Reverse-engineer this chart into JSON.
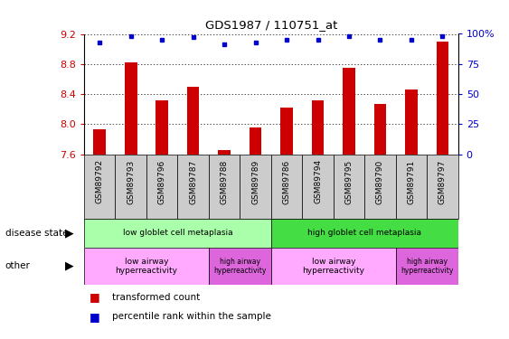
{
  "title": "GDS1987 / 110751_at",
  "samples": [
    "GSM89792",
    "GSM89793",
    "GSM89796",
    "GSM89787",
    "GSM89788",
    "GSM89789",
    "GSM89786",
    "GSM89794",
    "GSM89795",
    "GSM89790",
    "GSM89791",
    "GSM89797"
  ],
  "bar_values": [
    7.93,
    8.82,
    8.32,
    8.5,
    7.65,
    7.96,
    8.22,
    8.32,
    8.75,
    8.27,
    8.46,
    9.1
  ],
  "percentile_values": [
    93,
    98,
    95,
    97,
    91,
    93,
    95,
    95,
    98,
    95,
    95,
    98
  ],
  "bar_color": "#cc0000",
  "percentile_color": "#0000cc",
  "ylim_left": [
    7.6,
    9.2
  ],
  "yticks_left": [
    7.6,
    8.0,
    8.4,
    8.8,
    9.2
  ],
  "ylim_right": [
    0,
    100
  ],
  "yticks_right": [
    0,
    25,
    50,
    75,
    100
  ],
  "yticklabels_right": [
    "0",
    "25",
    "50",
    "75",
    "100%"
  ],
  "disease_state_groups": [
    {
      "label": "low globlet cell metaplasia",
      "start": 0,
      "end": 5,
      "color": "#aaffaa"
    },
    {
      "label": "high globlet cell metaplasia",
      "start": 6,
      "end": 11,
      "color": "#44dd44"
    }
  ],
  "other_groups": [
    {
      "label": "low airway\nhyperreactivity",
      "start": 0,
      "end": 3,
      "color": "#ffaaff"
    },
    {
      "label": "high airway\nhyperreactivity",
      "start": 4,
      "end": 5,
      "color": "#dd66dd"
    },
    {
      "label": "low airway\nhyperreactivity",
      "start": 6,
      "end": 9,
      "color": "#ffaaff"
    },
    {
      "label": "high airway\nhyperreactivity",
      "start": 10,
      "end": 11,
      "color": "#dd66dd"
    }
  ],
  "bar_color_label": "transformed count",
  "pct_color_label": "percentile rank within the sample",
  "disease_state_label": "disease state",
  "other_label": "other",
  "xlabel_color": "#cc0000",
  "ylabel_right_color": "#0000cc",
  "xtick_bg_color": "#cccccc"
}
